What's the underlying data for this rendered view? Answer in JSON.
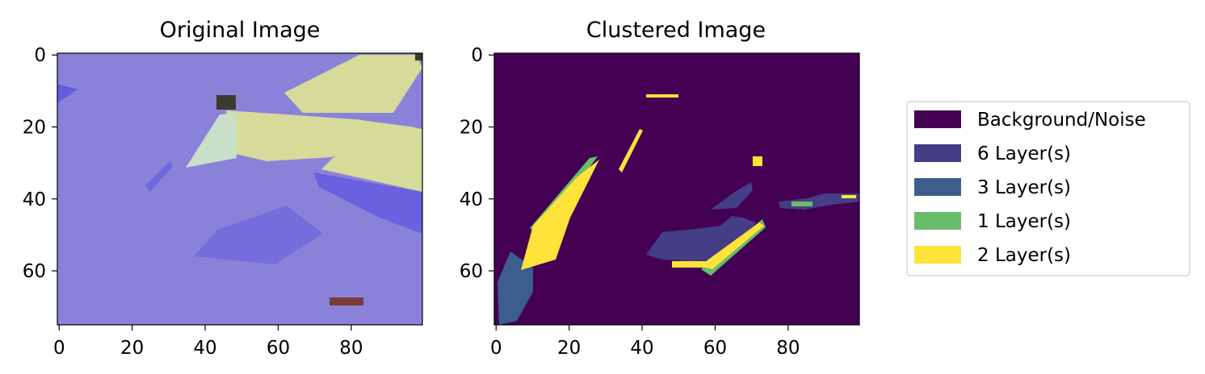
{
  "chart_data": [
    {
      "type": "heatmap",
      "title": "Original Image",
      "xlim": [
        0,
        99
      ],
      "ylim": [
        75,
        0
      ],
      "xticks": [
        "0",
        "20",
        "40",
        "60",
        "80"
      ],
      "yticks": [
        "0",
        "20",
        "40",
        "60"
      ],
      "xtick_values": [
        0,
        20,
        40,
        60,
        80
      ],
      "ytick_values": [
        0,
        20,
        40,
        60
      ],
      "colors": {
        "background": "#8a82d9",
        "flake_light": "#d6db9a",
        "flake_pale": "#c9e0c8",
        "dark_blue": "#5d55df",
        "scale_bar": "#7a3b3b",
        "edge_dark": "#3d3a2e"
      }
    },
    {
      "type": "heatmap",
      "title": "Clustered Image",
      "xlim": [
        0,
        99
      ],
      "ylim": [
        75,
        0
      ],
      "xticks": [
        "0",
        "20",
        "40",
        "60",
        "80"
      ],
      "yticks": [
        "0",
        "20",
        "40",
        "60"
      ],
      "xtick_values": [
        0,
        20,
        40,
        60,
        80
      ],
      "ytick_values": [
        0,
        20,
        40,
        60
      ],
      "colors": {
        "background": "#440154",
        "layer6": "#433e85",
        "layer3": "#3b5e8c",
        "layer1": "#69bd6b",
        "layer2": "#fde33a"
      },
      "legend": {
        "placement": "right",
        "entries": [
          {
            "label": "Background/Noise",
            "color": "#440154"
          },
          {
            "label": "6 Layer(s)",
            "color": "#433e85"
          },
          {
            "label": "3 Layer(s)",
            "color": "#3b5e8c"
          },
          {
            "label": "1 Layer(s)",
            "color": "#69bd6b"
          },
          {
            "label": "2 Layer(s)",
            "color": "#fde33a"
          }
        ]
      }
    }
  ]
}
